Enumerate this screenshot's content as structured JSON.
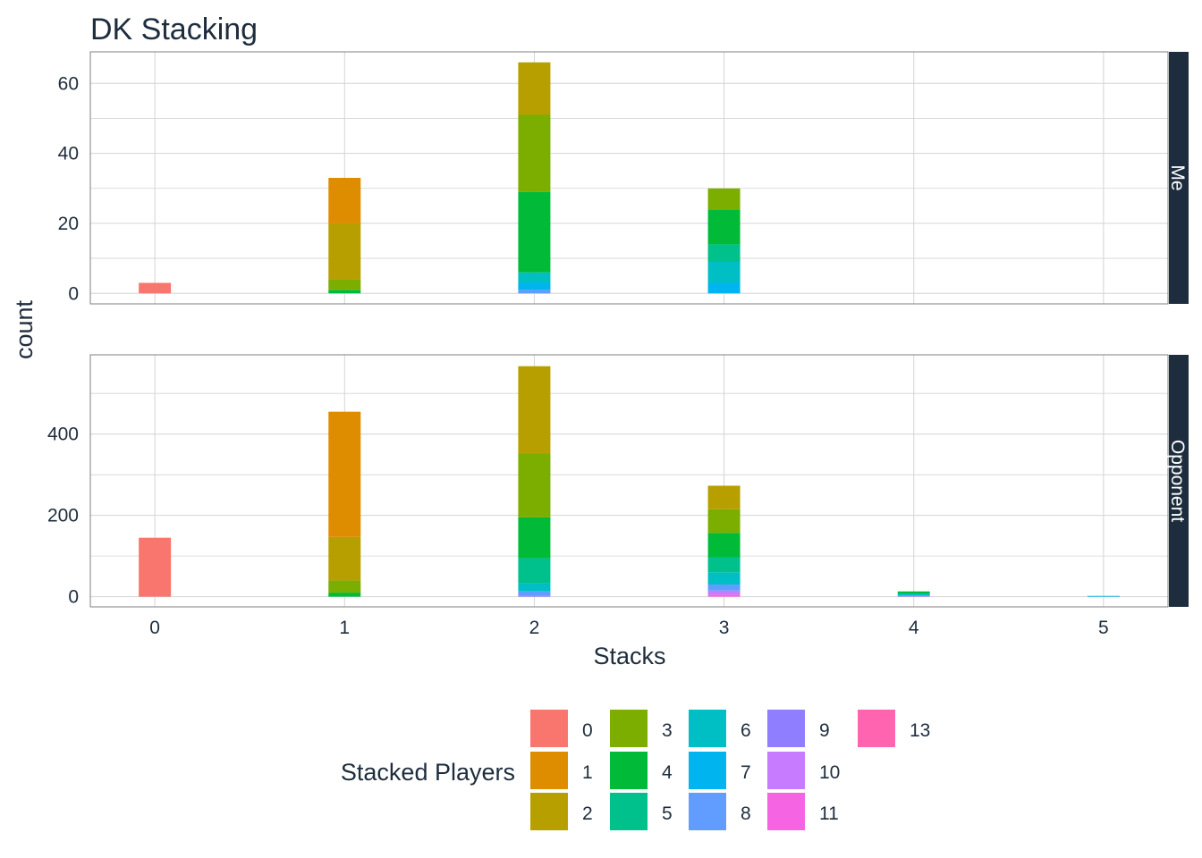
{
  "chart_data": {
    "type": "bar",
    "stacked": true,
    "title": "DK Stacking",
    "xlabel": "Stacks",
    "ylabel": "count",
    "x_ticks": [
      "0",
      "1",
      "2",
      "3",
      "4",
      "5"
    ],
    "legend": {
      "title": "Stacked Players",
      "position": "bottom",
      "entries": [
        {
          "label": "0",
          "color": "#F8766D"
        },
        {
          "label": "1",
          "color": "#DE8C00"
        },
        {
          "label": "2",
          "color": "#B79F00"
        },
        {
          "label": "3",
          "color": "#7CAE00"
        },
        {
          "label": "4",
          "color": "#00BA38"
        },
        {
          "label": "5",
          "color": "#00C08B"
        },
        {
          "label": "6",
          "color": "#00BFC4"
        },
        {
          "label": "7",
          "color": "#00B4F0"
        },
        {
          "label": "8",
          "color": "#619CFF"
        },
        {
          "label": "9",
          "color": "#8F7EFF"
        },
        {
          "label": "10",
          "color": "#C77CFF"
        },
        {
          "label": "11",
          "color": "#F564E3"
        },
        {
          "label": "13",
          "color": "#FF64B0"
        }
      ]
    },
    "panels": [
      {
        "strip": "Me",
        "ylim": [
          -3,
          69
        ],
        "y_ticks": [
          0,
          20,
          40,
          60
        ],
        "stacks": [
          {
            "x": 0,
            "segments": [
              {
                "group": "0",
                "count": 3
              }
            ]
          },
          {
            "x": 1,
            "segments": [
              {
                "group": "4",
                "count": 1
              },
              {
                "group": "3",
                "count": 3
              },
              {
                "group": "2",
                "count": 16
              },
              {
                "group": "1",
                "count": 13
              }
            ]
          },
          {
            "x": 2,
            "segments": [
              {
                "group": "8",
                "count": 1
              },
              {
                "group": "7",
                "count": 2
              },
              {
                "group": "6",
                "count": 3
              },
              {
                "group": "4",
                "count": 23
              },
              {
                "group": "3",
                "count": 22
              },
              {
                "group": "2",
                "count": 15
              }
            ]
          },
          {
            "x": 3,
            "segments": [
              {
                "group": "7",
                "count": 3
              },
              {
                "group": "6",
                "count": 6
              },
              {
                "group": "5",
                "count": 5
              },
              {
                "group": "4",
                "count": 10
              },
              {
                "group": "3",
                "count": 6
              }
            ]
          }
        ]
      },
      {
        "strip": "Opponent",
        "ylim": [
          -25,
          595
        ],
        "y_ticks": [
          0,
          200,
          400
        ],
        "stacks": [
          {
            "x": 0,
            "segments": [
              {
                "group": "0",
                "count": 145
              }
            ]
          },
          {
            "x": 1,
            "segments": [
              {
                "group": "4",
                "count": 10
              },
              {
                "group": "3",
                "count": 30
              },
              {
                "group": "2",
                "count": 107
              },
              {
                "group": "1",
                "count": 308
              }
            ]
          },
          {
            "x": 2,
            "segments": [
              {
                "group": "9",
                "count": 3
              },
              {
                "group": "8",
                "count": 10
              },
              {
                "group": "6",
                "count": 20
              },
              {
                "group": "5",
                "count": 62
              },
              {
                "group": "4",
                "count": 100
              },
              {
                "group": "3",
                "count": 157
              },
              {
                "group": "2",
                "count": 215
              }
            ]
          },
          {
            "x": 3,
            "segments": [
              {
                "group": "11",
                "count": 5
              },
              {
                "group": "10",
                "count": 10
              },
              {
                "group": "8",
                "count": 15
              },
              {
                "group": "6",
                "count": 30
              },
              {
                "group": "5",
                "count": 37
              },
              {
                "group": "4",
                "count": 60
              },
              {
                "group": "3",
                "count": 58
              },
              {
                "group": "2",
                "count": 58
              }
            ]
          },
          {
            "x": 4,
            "segments": [
              {
                "group": "9",
                "count": 3
              },
              {
                "group": "6",
                "count": 5
              },
              {
                "group": "4",
                "count": 5
              }
            ]
          },
          {
            "x": 5,
            "segments": [
              {
                "group": "7",
                "count": 2
              }
            ]
          }
        ]
      }
    ]
  }
}
